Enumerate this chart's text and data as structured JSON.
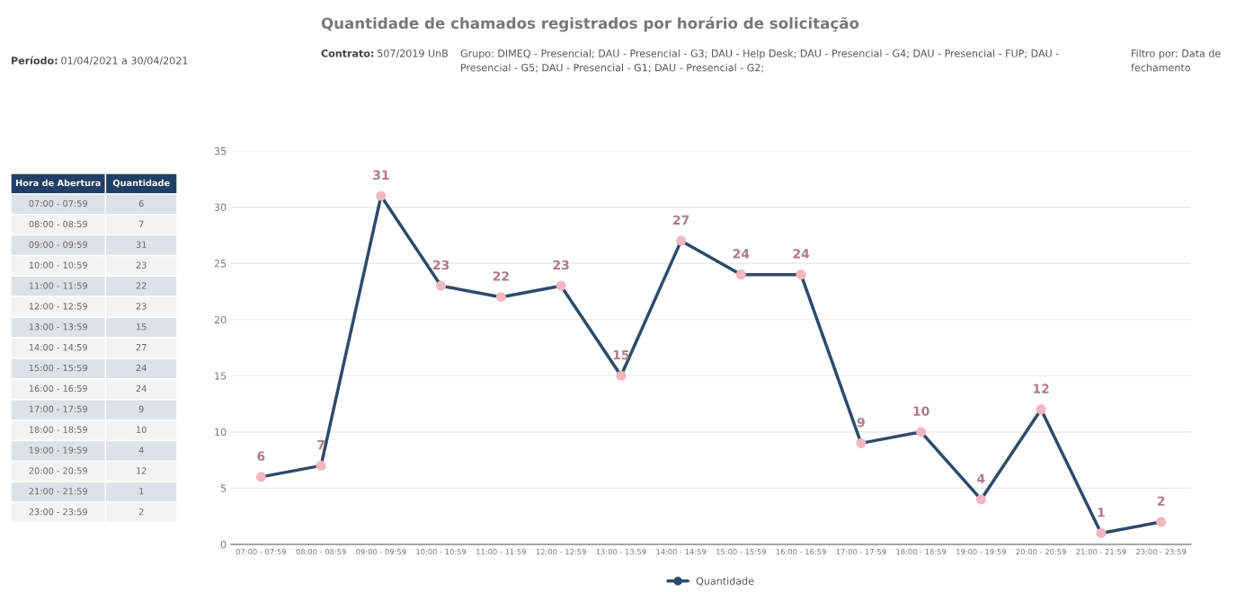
{
  "chart_data": [
    {
      "type": "other",
      "annotations": [
        "Hora de Abertura",
        "Quantidade"
      ],
      "categories": [
        "07:00 - 07:59",
        "08:00 - 08:59",
        "09:00 - 09:59",
        "10:00 - 10:59",
        "11:00 - 11:59",
        "12:00 - 12:59",
        "13:00 - 13:59",
        "14:00 - 14:59",
        "15:00 - 15:59",
        "16:00 - 16:59",
        "17:00 - 17:59",
        "18:00 - 18:59",
        "19:00 - 19:59",
        "20:00 - 20:59",
        "21:00 - 21:59",
        "23:00 - 23:59"
      ],
      "values": [
        6,
        7,
        31,
        23,
        22,
        23,
        15,
        27,
        24,
        24,
        9,
        10,
        4,
        12,
        1,
        2
      ],
      "data_labels": true
    },
    {
      "type": "line",
      "title": "Quantidade de chamados registrados por horário de solicitação",
      "annotations": [
        "Período: 01/04/2021 a 30/04/2021",
        "Contrato: 507/2019 UnB",
        "Grupo: DIMEQ - Presencial; DAU - Presencial - G3; DAU - Help Desk; DAU - Presencial - G4; DAU - Presencial - FUP; DAU - Presencial - G5; DAU - Presencial - G1; DAU - Presencial - G2;",
        "Filtro por: Data de fechamento"
      ],
      "categories": [
        "07:00 - 07:59",
        "08:00 - 08:59",
        "09:00 - 09:59",
        "10:00 - 10:59",
        "11:00 - 11:59",
        "12:00 - 12:59",
        "13:00 - 13:59",
        "14:00 - 14:59",
        "15:00 - 15:59",
        "16:00 - 16:59",
        "17:00 - 17:59",
        "18:00 - 18:59",
        "19:00 - 19:59",
        "20:00 - 20:59",
        "21:00 - 21:59",
        "23:00 - 23:59"
      ],
      "series": [
        {
          "name": "Quantidade",
          "color": "#2e4a6b",
          "values": [
            6,
            7,
            31,
            23,
            22,
            23,
            15,
            27,
            24,
            24,
            9,
            10,
            4,
            12,
            1,
            2
          ]
        }
      ],
      "ylim": [
        0,
        35
      ],
      "yticks": [
        0,
        5,
        10,
        15,
        20,
        25,
        30,
        35
      ],
      "grid": "y",
      "legend": "bottom",
      "marker": "circle",
      "line_style": "solid",
      "data_labels": true
    }
  ]
}
